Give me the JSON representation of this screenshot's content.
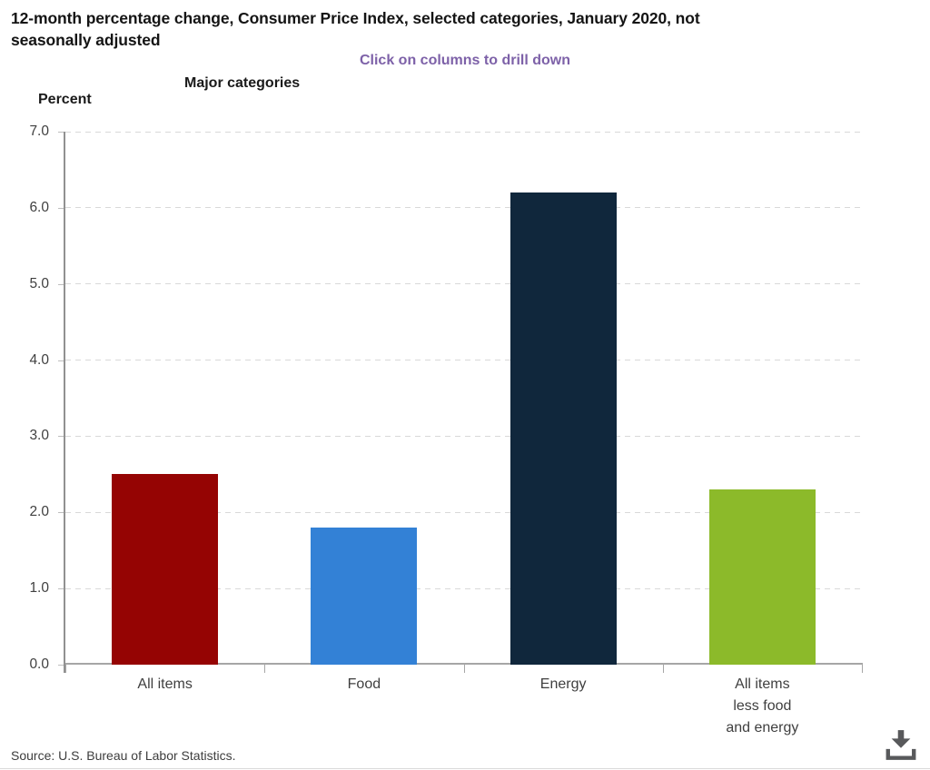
{
  "header": {
    "title": "12-month percentage change, Consumer Price Index, selected categories, January 2020, not\nseasonally adjusted",
    "subtitle": "Click on columns to drill down",
    "subtitle_color": "#7d61a8",
    "group_label": "Major categories",
    "axis_unit_label": "Percent"
  },
  "chart_data": {
    "type": "bar",
    "title": "12-month percentage change, Consumer Price Index, selected categories, January 2020, not seasonally adjusted",
    "categories": [
      "All items",
      "Food",
      "Energy",
      "All items\nless food\nand energy"
    ],
    "values": [
      2.5,
      1.8,
      6.2,
      2.3
    ],
    "bar_colors": [
      "#950403",
      "#3381d6",
      "#10273c",
      "#8cba2a"
    ],
    "xlabel": "Major categories",
    "ylabel": "Percent",
    "ylim": [
      0,
      7
    ],
    "ytick_step": 1.0,
    "ytick_decimals": 1,
    "grid": "horizontal-dashed",
    "legend": "none",
    "interaction_hint": "Click on columns to drill down"
  },
  "footer": {
    "source": "Source: U.S. Bureau of Labor Statistics.",
    "download_icon": "download-icon"
  }
}
